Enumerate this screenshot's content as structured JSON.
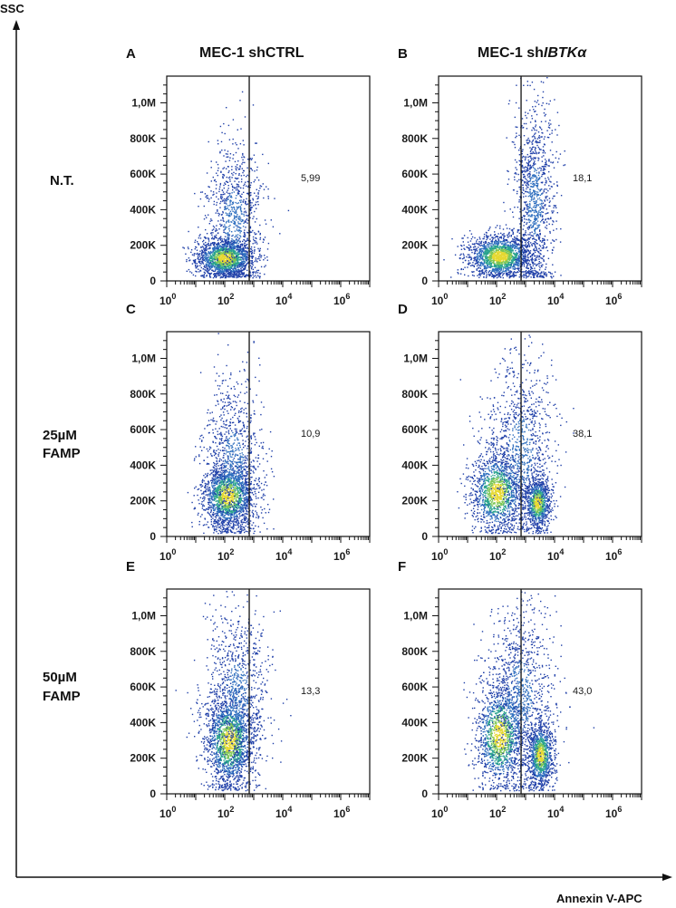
{
  "figure": {
    "y_axis_label": "SSC",
    "x_axis_label": "Annexin V-APC",
    "column_titles": [
      {
        "text": "MEC-1 shCTRL"
      },
      {
        "prefix": "MEC-1 sh",
        "italic": "IBTKα"
      }
    ],
    "row_labels": [
      {
        "line1": "N.T.",
        "line2": ""
      },
      {
        "line1": "25µM",
        "line2": "FAMP"
      },
      {
        "line1": "50µM",
        "line2": "FAMP"
      }
    ]
  },
  "chart_data": [
    {
      "type": "scatter",
      "panel": "A",
      "row": 0,
      "col": 0,
      "gate_percent": "5,99",
      "x_scale": "log",
      "xlim": [
        1,
        10000000
      ],
      "ylim": [
        0,
        1150000
      ],
      "x_ticks": [
        1,
        100,
        10000,
        1000000
      ],
      "y_ticks": [
        0,
        200000,
        400000,
        600000,
        800000,
        1000000
      ],
      "gate_x": 700,
      "populations": [
        {
          "center_log_x": 2.0,
          "center_y": 130000,
          "sigma_log_x": 0.5,
          "sigma_y": 55000,
          "n": 1600,
          "dense": true
        },
        {
          "center_log_x": 2.3,
          "center_y": 350000,
          "sigma_log_x": 0.5,
          "sigma_y": 220000,
          "n": 900,
          "dense": false
        }
      ]
    },
    {
      "type": "scatter",
      "panel": "B",
      "row": 0,
      "col": 1,
      "gate_percent": "18,1",
      "x_scale": "log",
      "xlim": [
        1,
        10000000
      ],
      "ylim": [
        0,
        1150000
      ],
      "x_ticks": [
        1,
        100,
        10000,
        1000000
      ],
      "y_ticks": [
        0,
        200000,
        400000,
        600000,
        800000,
        1000000
      ],
      "gate_x": 700,
      "populations": [
        {
          "center_log_x": 2.1,
          "center_y": 140000,
          "sigma_log_x": 0.55,
          "sigma_y": 60000,
          "n": 1700,
          "dense": true
        },
        {
          "center_log_x": 3.3,
          "center_y": 450000,
          "sigma_log_x": 0.35,
          "sigma_y": 280000,
          "n": 1100,
          "dense": false
        }
      ]
    },
    {
      "type": "scatter",
      "panel": "C",
      "row": 1,
      "col": 0,
      "gate_percent": "10,9",
      "x_scale": "log",
      "xlim": [
        1,
        10000000
      ],
      "ylim": [
        0,
        1150000
      ],
      "x_ticks": [
        1,
        100,
        10000,
        1000000
      ],
      "y_ticks": [
        0,
        200000,
        400000,
        600000,
        800000,
        1000000
      ],
      "gate_x": 700,
      "populations": [
        {
          "center_log_x": 2.1,
          "center_y": 230000,
          "sigma_log_x": 0.45,
          "sigma_y": 90000,
          "n": 1600,
          "dense": true
        },
        {
          "center_log_x": 2.3,
          "center_y": 420000,
          "sigma_log_x": 0.5,
          "sigma_y": 240000,
          "n": 900,
          "dense": false
        }
      ]
    },
    {
      "type": "scatter",
      "panel": "D",
      "row": 1,
      "col": 1,
      "gate_percent": "38,1",
      "x_scale": "log",
      "xlim": [
        1,
        10000000
      ],
      "ylim": [
        0,
        1150000
      ],
      "x_ticks": [
        1,
        100,
        10000,
        1000000
      ],
      "y_ticks": [
        0,
        200000,
        400000,
        600000,
        800000,
        1000000
      ],
      "gate_x": 700,
      "populations": [
        {
          "center_log_x": 2.0,
          "center_y": 250000,
          "sigma_log_x": 0.45,
          "sigma_y": 110000,
          "n": 1300,
          "dense": true
        },
        {
          "center_log_x": 3.4,
          "center_y": 190000,
          "sigma_log_x": 0.22,
          "sigma_y": 70000,
          "n": 900,
          "dense": true
        },
        {
          "center_log_x": 2.8,
          "center_y": 480000,
          "sigma_log_x": 0.6,
          "sigma_y": 270000,
          "n": 1000,
          "dense": false
        }
      ]
    },
    {
      "type": "scatter",
      "panel": "E",
      "row": 2,
      "col": 0,
      "gate_percent": "13,3",
      "x_scale": "log",
      "xlim": [
        1,
        10000000
      ],
      "ylim": [
        0,
        1150000
      ],
      "x_ticks": [
        1,
        100,
        10000,
        1000000
      ],
      "y_ticks": [
        0,
        200000,
        400000,
        600000,
        800000,
        1000000
      ],
      "gate_x": 700,
      "populations": [
        {
          "center_log_x": 2.15,
          "center_y": 300000,
          "sigma_log_x": 0.42,
          "sigma_y": 130000,
          "n": 1700,
          "dense": true
        },
        {
          "center_log_x": 2.4,
          "center_y": 550000,
          "sigma_log_x": 0.55,
          "sigma_y": 260000,
          "n": 1000,
          "dense": false
        }
      ]
    },
    {
      "type": "scatter",
      "panel": "F",
      "row": 2,
      "col": 1,
      "gate_percent": "43,0",
      "x_scale": "log",
      "xlim": [
        1,
        10000000
      ],
      "ylim": [
        0,
        1150000
      ],
      "x_ticks": [
        1,
        100,
        10000,
        1000000
      ],
      "y_ticks": [
        0,
        200000,
        400000,
        600000,
        800000,
        1000000
      ],
      "gate_x": 700,
      "populations": [
        {
          "center_log_x": 2.1,
          "center_y": 330000,
          "sigma_log_x": 0.42,
          "sigma_y": 150000,
          "n": 1300,
          "dense": true
        },
        {
          "center_log_x": 3.5,
          "center_y": 220000,
          "sigma_log_x": 0.22,
          "sigma_y": 90000,
          "n": 1000,
          "dense": true
        },
        {
          "center_log_x": 2.8,
          "center_y": 550000,
          "sigma_log_x": 0.6,
          "sigma_y": 280000,
          "n": 1100,
          "dense": false
        }
      ]
    }
  ]
}
